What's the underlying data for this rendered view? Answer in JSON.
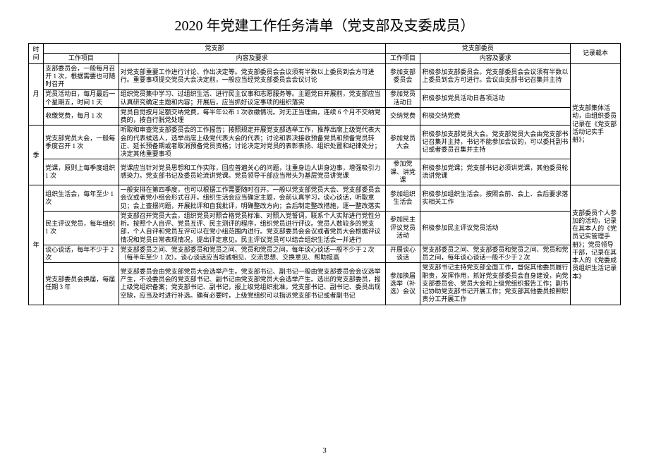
{
  "title": "2020 年党建工作任务清单（党支部及支委成员）",
  "page_number": "3",
  "headers": {
    "time": "时间",
    "branch": "党支部",
    "committee": "党支部委员",
    "record": "记录载本",
    "item": "工作项目",
    "req": "内容及要求"
  },
  "groups": [
    {
      "time": "月",
      "record": "党支部集体活动，由组织委员记录在《党支部活动记实手册》；",
      "record_rowspan": 5,
      "rows": [
        {
          "item1": "支部委员会，一般每月召开 1 次，根据需要也可随时召开",
          "req1": "对党支部重要工作进行讨论、作出决定等。党支部委员会会议须有半数以上委员到会方可进行。重要事项提交党员大会决定前，一般应当经党支部委员会会议讨论",
          "item2": "参加支部委员会",
          "req2": "积极参加支部委员会。党支部委员会会议须有半数以上委员到会方可进行。会议由支部书记召集并主持"
        },
        {
          "item1": "党员活动日，每月最后一个星期五，时间 1 天",
          "req1": "组织党员集中学习、过组织生活、进行民主议事和志愿服务等。主题党日开展前，党支部应当认真研究确定主题和内容；开展后，应当抓好议定事项的组织落实",
          "item2": "参加党员活动日",
          "req2": "积极参加党员活动日各项活动"
        },
        {
          "item1": "收缴党费，每月 1 次",
          "req1": "党员自觉按月足额交纳党费，每半年公布 1 次收缴情况。对无正当理由，连续 6 个月不交纳党费的，按自行脱党处理",
          "item2": "交纳党费",
          "req2": "积极交纳党费"
        }
      ]
    },
    {
      "time": "季",
      "rows": [
        {
          "item1": "党支部党员大会，一般每季度召开 1 次",
          "req1": "听取和审查党支部委员会的工作报告；按照规定开展党支部选举工作，推荐出席上级党代表大会的代表候选人，选举出席上级党代表大会的代表；讨论和表决接收预备党员和预备党员转正、延长预备期或者取消预备党员资格；讨论决定对党员的表彰表扬、组织处置和纪律处分；决定其他重要事项",
          "item2": "参加党员大会",
          "req2": "积极参加支部党员大会。党支部党员大会由党支部书记召集并主持，书记不能参加会议的，可以委托副书记或者委员召集并主持"
        },
        {
          "item1": "党课，原则上每季度组织 1 次",
          "req1": "党课应当针对党员思想和工作实际，回应普遍关心的问题，注重身边人讲身边事，增强吸引力感染力。党支部书记及委员轮流讲党课。党员领导干部应当带头为基层党员讲党课",
          "item2": "参加党课、讲党课",
          "req2": "积极参加党课；党支部书记必须讲党课，其他委员轮流讲党课"
        }
      ]
    },
    {
      "time": "年",
      "record": "支部委员个人参加的活动，记录在其本人的《党员记实管理手册》；党员领导干部，记录在其本人的《党委成员组织生活记录本》",
      "record_rowspan": 4,
      "rows": [
        {
          "item1": "组织生活会，每年至少 1 次",
          "req1": "一般安排在第四季度，也可以根据工作需要随时召开。一般以党支部党员大会、党支部委员会会议或者党小组会形式召开。组织生活会应当确定主题，会前认真学习，谈心谈话，听取意见；会上查摆问题，开展批评和自我批评，明确整改方向；会后制定整改措施，逐一整改落实",
          "item2": "参加组织生活会",
          "req2": "积极参加组织生活会。按照会前、会上、会后要求落实相关工作"
        },
        {
          "item1": "民主评议党员，每年组织 1 次",
          "req1": "党支部召开党员大会，组织党员对照合格党员标准、对照入党誓词，联系个人实际进行党性分析。按照个人自评、党员互评、民主测评的程序，组织党员进行评议。党员人数较多的党支部，个人自评和党员互评可以在党小组范围内进行。党支部委员会会议或者党员大会根据评议情况和党员日常表现情况，提出评定意见。民主评议党员可以结合组织生活会一并进行",
          "item2": "参加民主评议党员活动",
          "req2": "积极参加民主评议党员活动"
        },
        {
          "item1": "谈心谈话，每年不少于 2 次",
          "req1": "党支部委员之间、党支部委员和党员之间、党员和党员之间，每年谈心谈话一般不少于 2 次（每半年至少 1 次）。谈心谈话应当坦诚相见、交流思想、交换意见、帮助提高",
          "item2": "开展谈心谈话",
          "req2": "党支部委员之间、党支部委员和党员之间、党员和党员之间，每年谈心谈话一般不少于 2 次"
        },
        {
          "item1": "党支部委员会换届，每届任期 3 年",
          "req1": "党支部委员会由党支部党员大会选举产生。党支部书记、副书记一般由党支部委员会会议选举产生，不设委员会的党支部书记、副书记由党支部党员大会选举产生。选出的党支部委员，报上级党组织备案；党支部书记、副书记，报上级党组织批准。党支部书记、副书记、委员出现空缺，应当及时进行补选。确有必要时，上级党组织可以指派党支部书记或者副书记",
          "item2": "参加换届选举（补选）会议",
          "req2": "党支部书记主持党支部全面工作，督促其他委员履行职责，发挥作用，抓好党支部委员会自身建设，向党支部委员会、党员大会和上级党组织报告工作；副书记协助党支部书记开展工作；党支部其他委员按照职责分工开展工作"
        }
      ]
    }
  ]
}
